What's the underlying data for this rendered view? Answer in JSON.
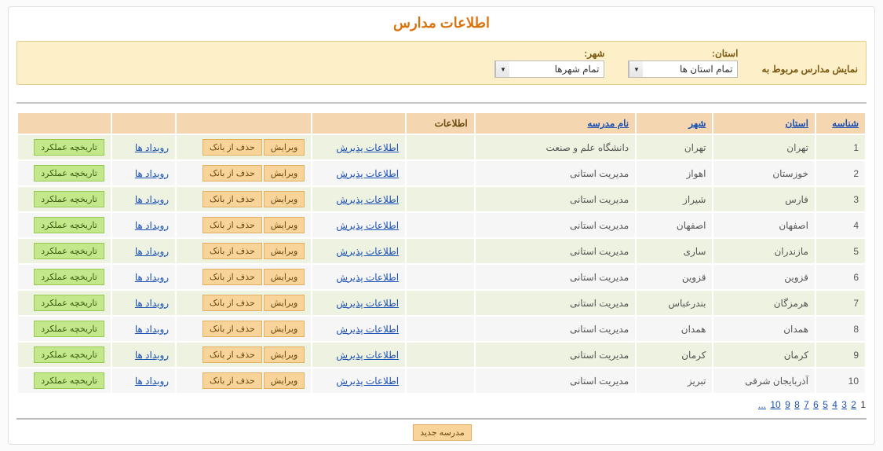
{
  "title": "اطلاعات مدارس",
  "filter": {
    "lead": "نمایش مدارس مربوط به",
    "province_label": "استان:",
    "province_value": "تمام استان ها",
    "city_label": "شهر:",
    "city_value": "تمام شهرها"
  },
  "headers": {
    "id": "شناسه",
    "province": "استان",
    "city": "شهر",
    "school": "نام مدرسه",
    "info": "اطلاعات",
    "blank1": "",
    "blank2": "",
    "blank3": "",
    "blank4": ""
  },
  "actions": {
    "admission": "اطلاعات پذیرش",
    "edit": "ویرایش",
    "delete": "حذف از بانک",
    "events": "رویداد ها",
    "history": "تاریخچه عملکرد"
  },
  "rows": [
    {
      "id": "1",
      "province": "تهران",
      "city": "تهران",
      "school": "دانشگاه علم و صنعت"
    },
    {
      "id": "2",
      "province": "خوزستان",
      "city": "اهواز",
      "school": "مدیریت استانی"
    },
    {
      "id": "3",
      "province": "فارس",
      "city": "شیراز",
      "school": "مدیریت استانی"
    },
    {
      "id": "4",
      "province": "اصفهان",
      "city": "اصفهان",
      "school": "مدیریت استانی"
    },
    {
      "id": "5",
      "province": "مازندران",
      "city": "ساری",
      "school": "مدیریت استانی"
    },
    {
      "id": "6",
      "province": "قزوین",
      "city": "قزوین",
      "school": "مدیریت استانی"
    },
    {
      "id": "7",
      "province": "هرمزگان",
      "city": "بندرعباس",
      "school": "مدیریت استانی"
    },
    {
      "id": "8",
      "province": "همدان",
      "city": "همدان",
      "school": "مدیریت استانی"
    },
    {
      "id": "9",
      "province": "کرمان",
      "city": "کرمان",
      "school": "مدیریت استانی"
    },
    {
      "id": "10",
      "province": "آذربایجان شرقی",
      "city": "تبریز",
      "school": "مدیریت استانی"
    }
  ],
  "pager": {
    "current": "1",
    "pages": [
      "2",
      "3",
      "4",
      "5",
      "6",
      "7",
      "8",
      "9",
      "10"
    ],
    "more": "..."
  },
  "new_school": "مدرسه جدید"
}
